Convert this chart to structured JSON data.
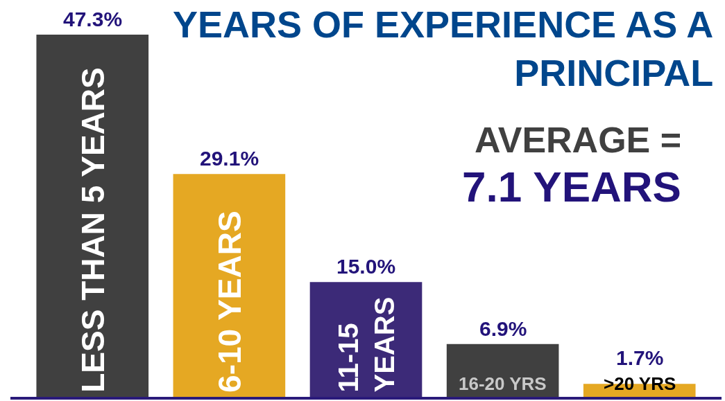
{
  "chart_data": {
    "type": "bar",
    "title": "YEARS OF EXPERIENCE AS A PRINCIPAL",
    "categories": [
      "LESS THAN 5 YEARS",
      "6-10 YEARS",
      "11-15 YEARS",
      "16-20 YRS",
      ">20 YRS"
    ],
    "values": [
      47.3,
      29.1,
      15.0,
      6.9,
      1.7
    ],
    "value_labels": [
      "47.3%",
      "29.1%",
      "15.0%",
      "6.9%",
      "1.7%"
    ],
    "colors": [
      "#404040",
      "#e5a823",
      "#3c2a78",
      "#404040",
      "#e5a823"
    ],
    "annotations": [
      "AVERAGE =",
      "7.1 YEARS"
    ]
  }
}
